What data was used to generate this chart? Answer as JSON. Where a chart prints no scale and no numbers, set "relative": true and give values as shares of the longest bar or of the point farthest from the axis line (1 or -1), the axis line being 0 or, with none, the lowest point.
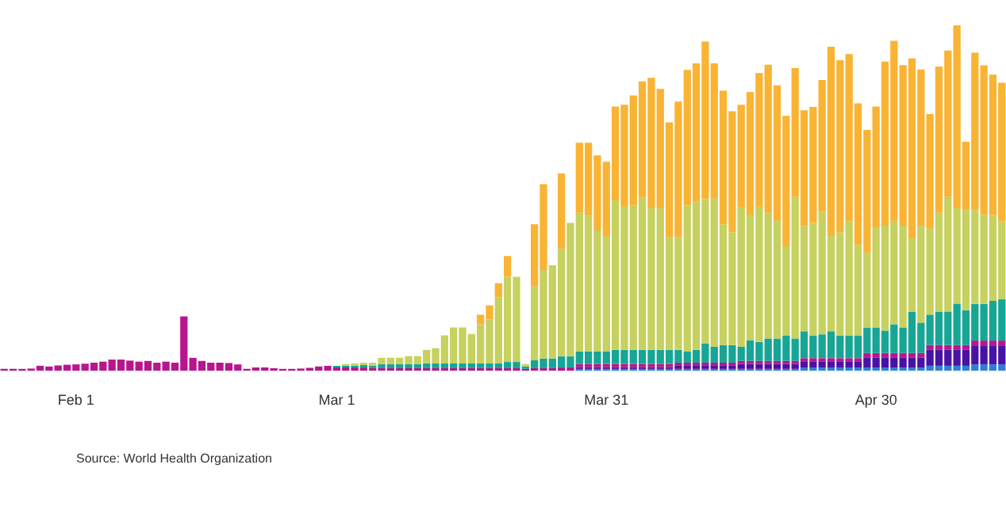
{
  "chart_data": {
    "type": "bar",
    "stacked": true,
    "relative": true,
    "categories": [
      null,
      null,
      null,
      null,
      null,
      null,
      null,
      null,
      "Feb 1",
      null,
      null,
      null,
      null,
      null,
      null,
      null,
      null,
      null,
      null,
      null,
      null,
      null,
      null,
      null,
      null,
      null,
      null,
      null,
      null,
      null,
      null,
      null,
      null,
      null,
      null,
      null,
      null,
      "Mar 1",
      null,
      null,
      null,
      null,
      null,
      null,
      null,
      null,
      null,
      null,
      null,
      null,
      null,
      null,
      null,
      null,
      null,
      null,
      null,
      null,
      null,
      null,
      null,
      null,
      null,
      null,
      null,
      null,
      null,
      "Mar 31",
      null,
      null,
      null,
      null,
      null,
      null,
      null,
      null,
      null,
      null,
      null,
      null,
      null,
      null,
      null,
      null,
      null,
      null,
      null,
      null,
      null,
      null,
      null,
      null,
      null,
      null,
      null,
      null,
      null,
      "Apr 30",
      null,
      null,
      null,
      null,
      null,
      null,
      null,
      null,
      null,
      null,
      null,
      null,
      null,
      null
    ],
    "series": [
      {
        "color": "#2d7fd8",
        "values": [
          null,
          null,
          null,
          null,
          null,
          null,
          null,
          null,
          null,
          null,
          null,
          null,
          null,
          null,
          null,
          null,
          null,
          null,
          null,
          null,
          null,
          null,
          null,
          null,
          null,
          null,
          null,
          null,
          null,
          null,
          null,
          null,
          null,
          null,
          null,
          null,
          null,
          null,
          null,
          null,
          null,
          null,
          null,
          null,
          null,
          null,
          null,
          null,
          null,
          null,
          null,
          null,
          null,
          null,
          null,
          null,
          null,
          null,
          null,
          null,
          null,
          null,
          null,
          null,
          0.005,
          0.005,
          0.005,
          0.005,
          0.005,
          0.005,
          0.005,
          0.005,
          0.005,
          0.005,
          0.005,
          0.005,
          0.005,
          0.005,
          0.005,
          0.005,
          0.005,
          0.005,
          0.005,
          0.005,
          0.005,
          0.005,
          0.005,
          0.005,
          0.005,
          0.009,
          0.009,
          0.009,
          0.009,
          0.009,
          0.009,
          0.009,
          0.009,
          0.009,
          0.009,
          0.009,
          0.009,
          0.009,
          0.009,
          0.014,
          0.014,
          0.014,
          0.014,
          0.014,
          0.018,
          0.018,
          0.018,
          0.018
        ]
      },
      {
        "color": "#4a12a4",
        "values": [
          null,
          null,
          null,
          null,
          null,
          null,
          null,
          null,
          null,
          null,
          null,
          null,
          null,
          null,
          null,
          null,
          null,
          null,
          null,
          null,
          null,
          null,
          null,
          null,
          null,
          null,
          null,
          null,
          null,
          null,
          null,
          null,
          null,
          null,
          null,
          null,
          null,
          null,
          null,
          null,
          null,
          null,
          null,
          null,
          null,
          null,
          null,
          null,
          null,
          null,
          null,
          null,
          null,
          null,
          null,
          null,
          null,
          null,
          null,
          null,
          null,
          null,
          null,
          null,
          0.005,
          0.005,
          0.005,
          0.005,
          0.005,
          0.005,
          0.005,
          0.005,
          0.005,
          0.005,
          0.005,
          0.009,
          0.009,
          0.009,
          0.009,
          0.009,
          0.009,
          0.009,
          0.014,
          0.014,
          0.014,
          0.014,
          0.014,
          0.014,
          0.014,
          0.018,
          0.018,
          0.018,
          0.018,
          0.018,
          0.018,
          0.018,
          0.028,
          0.028,
          0.028,
          0.028,
          0.028,
          0.028,
          0.028,
          0.046,
          0.046,
          0.046,
          0.046,
          0.046,
          0.055,
          0.055,
          0.055,
          0.055
        ]
      },
      {
        "color": "#b8168e",
        "values": [
          0.005,
          0.005,
          0.005,
          0.006,
          0.014,
          0.012,
          0.015,
          0.017,
          0.018,
          0.02,
          0.023,
          0.026,
          0.032,
          0.032,
          0.029,
          0.026,
          0.028,
          0.023,
          0.026,
          0.023,
          0.157,
          0.037,
          0.028,
          0.023,
          0.023,
          0.022,
          0.018,
          0.005,
          0.009,
          0.009,
          0.007,
          0.005,
          0.005,
          0.006,
          0.008,
          0.012,
          0.014,
          0.009,
          0.009,
          0.009,
          0.009,
          0.007,
          0.007,
          0.007,
          0.007,
          0.007,
          0.007,
          0.007,
          0.007,
          0.007,
          0.007,
          0.007,
          0.007,
          0.007,
          0.007,
          0.007,
          0.007,
          0.007,
          0.005,
          0.007,
          0.007,
          0.007,
          0.009,
          0.009,
          0.009,
          0.009,
          0.009,
          0.009,
          0.009,
          0.009,
          0.009,
          0.009,
          0.009,
          0.009,
          0.009,
          0.009,
          0.009,
          0.009,
          0.009,
          0.009,
          0.009,
          0.009,
          0.009,
          0.009,
          0.009,
          0.009,
          0.009,
          0.009,
          0.009,
          0.009,
          0.009,
          0.009,
          0.009,
          0.009,
          0.009,
          0.009,
          0.014,
          0.014,
          0.014,
          0.014,
          0.014,
          0.014,
          0.014,
          0.014,
          0.014,
          0.014,
          0.014,
          0.014,
          0.014,
          0.014,
          0.014,
          0.014
        ]
      },
      {
        "color": "#17a595",
        "values": [
          null,
          null,
          null,
          null,
          null,
          null,
          null,
          null,
          null,
          null,
          null,
          null,
          null,
          null,
          null,
          null,
          null,
          null,
          null,
          null,
          null,
          null,
          null,
          null,
          null,
          null,
          null,
          null,
          null,
          null,
          null,
          null,
          null,
          null,
          null,
          null,
          null,
          0.005,
          0.005,
          0.005,
          0.007,
          0.007,
          0.012,
          0.012,
          0.012,
          0.012,
          0.012,
          0.014,
          0.014,
          0.014,
          0.014,
          0.014,
          0.014,
          0.014,
          0.014,
          0.014,
          0.018,
          0.018,
          0.007,
          0.023,
          0.028,
          0.028,
          0.032,
          0.032,
          0.037,
          0.037,
          0.037,
          0.037,
          0.041,
          0.041,
          0.041,
          0.041,
          0.041,
          0.041,
          0.041,
          0.037,
          0.032,
          0.037,
          0.055,
          0.046,
          0.051,
          0.051,
          0.041,
          0.06,
          0.055,
          0.065,
          0.065,
          0.074,
          0.065,
          0.078,
          0.065,
          0.069,
          0.078,
          0.065,
          0.065,
          0.065,
          0.074,
          0.074,
          0.065,
          0.083,
          0.074,
          0.12,
          0.088,
          0.088,
          0.097,
          0.097,
          0.12,
          0.101,
          0.106,
          0.106,
          0.115,
          0.12
        ]
      },
      {
        "color": "#c6d15f",
        "values": [
          null,
          null,
          null,
          null,
          null,
          null,
          null,
          null,
          null,
          null,
          null,
          null,
          null,
          null,
          null,
          null,
          null,
          null,
          null,
          null,
          null,
          null,
          null,
          null,
          null,
          null,
          null,
          null,
          null,
          null,
          null,
          null,
          null,
          null,
          null,
          null,
          null,
          null,
          0.005,
          0.007,
          0.007,
          0.009,
          0.018,
          0.018,
          0.018,
          0.023,
          0.023,
          0.039,
          0.044,
          0.081,
          0.104,
          0.104,
          0.085,
          0.113,
          0.127,
          0.191,
          0.247,
          0.247,
          0.007,
          0.214,
          0.256,
          0.27,
          0.313,
          0.387,
          0.401,
          0.392,
          0.35,
          0.332,
          0.433,
          0.415,
          0.419,
          0.442,
          0.41,
          0.41,
          0.327,
          0.327,
          0.424,
          0.429,
          0.419,
          0.429,
          0.35,
          0.327,
          0.406,
          0.364,
          0.392,
          0.364,
          0.341,
          0.258,
          0.41,
          0.304,
          0.327,
          0.355,
          0.276,
          0.3,
          0.332,
          0.263,
          0.217,
          0.29,
          0.304,
          0.3,
          0.295,
          0.212,
          0.281,
          0.249,
          0.286,
          0.332,
          0.276,
          0.29,
          0.272,
          0.258,
          0.249,
          0.226
        ]
      },
      {
        "color": "#f9b434",
        "values": [
          null,
          null,
          null,
          null,
          null,
          null,
          null,
          null,
          null,
          null,
          null,
          null,
          null,
          null,
          null,
          null,
          null,
          null,
          null,
          null,
          null,
          null,
          null,
          null,
          null,
          null,
          null,
          null,
          null,
          null,
          null,
          null,
          null,
          null,
          null,
          null,
          null,
          null,
          null,
          null,
          null,
          null,
          null,
          null,
          null,
          null,
          null,
          null,
          null,
          null,
          null,
          null,
          null,
          0.028,
          0.041,
          0.041,
          0.06,
          null,
          null,
          0.18,
          0.249,
          null,
          0.217,
          null,
          0.203,
          0.212,
          0.217,
          0.217,
          0.272,
          0.295,
          0.318,
          0.336,
          0.378,
          0.346,
          0.332,
          0.392,
          0.392,
          0.401,
          0.456,
          0.392,
          0.387,
          0.35,
          0.295,
          0.355,
          0.387,
          0.429,
          0.392,
          0.378,
          0.373,
          0.336,
          0.336,
          0.382,
          0.548,
          0.498,
          0.484,
          0.41,
          0.355,
          0.35,
          0.475,
          0.521,
          0.465,
          0.521,
          0.452,
          0.332,
          0.424,
          0.424,
          0.53,
          0.198,
          0.456,
          0.433,
          0.406,
          0.401
        ]
      }
    ],
    "annotations": [
      "Source: World Health Organization"
    ]
  }
}
